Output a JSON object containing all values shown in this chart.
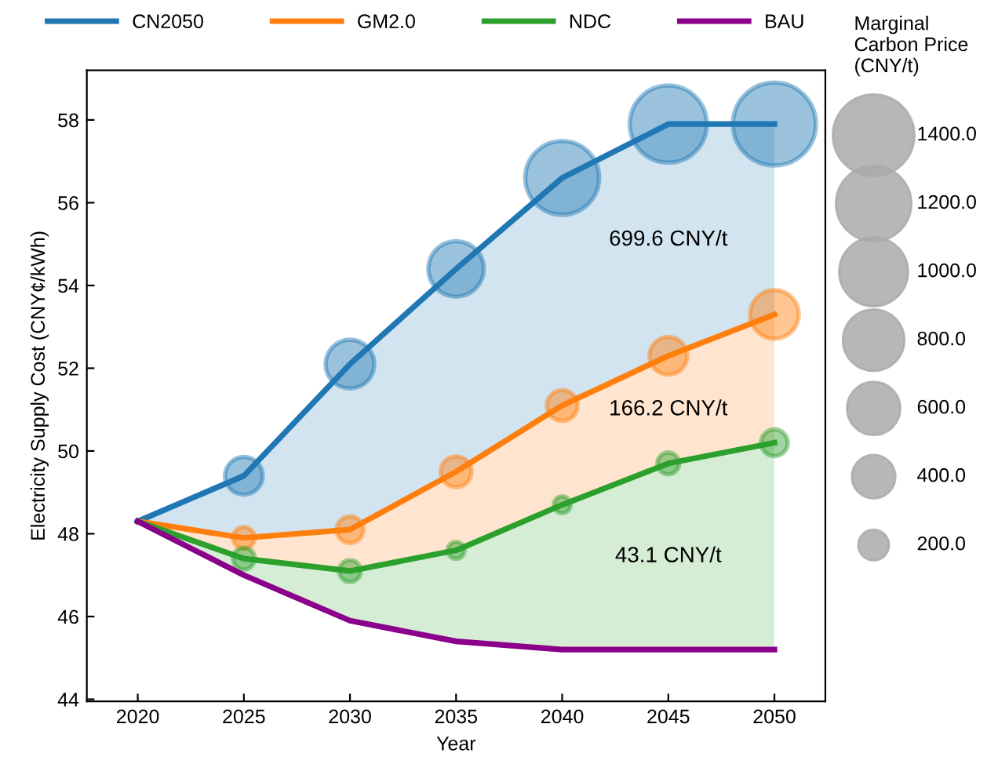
{
  "chart_data": {
    "type": "line",
    "xlabel": "Year",
    "ylabel": "Electricity Supply Cost (CNY¢/kWh)",
    "legend_title": "Marginal\nCarbon Price\n(CNY/t)",
    "x": [
      2020,
      2025,
      2030,
      2035,
      2040,
      2045,
      2050
    ],
    "xlim": [
      2017.6,
      2052.4
    ],
    "xticks": [
      2020,
      2025,
      2030,
      2035,
      2040,
      2045,
      2050
    ],
    "ylim": [
      43.95,
      59.2
    ],
    "yticks": [
      44,
      46,
      48,
      50,
      52,
      54,
      56,
      58
    ],
    "grid": false,
    "legend": "top",
    "size_legend": [
      {
        "value": 1400,
        "label": "1400.0"
      },
      {
        "value": 1200,
        "label": "1200.0"
      },
      {
        "value": 1000,
        "label": "1000.0"
      },
      {
        "value": 800,
        "label": "800.0"
      },
      {
        "value": 600,
        "label": "600.0"
      },
      {
        "value": 400,
        "label": "400.0"
      },
      {
        "value": 200,
        "label": "200.0"
      }
    ],
    "series": [
      {
        "name": "CN2050",
        "type": "area",
        "color": "#1f77b4",
        "values": [
          48.3,
          49.4,
          52.1,
          54.4,
          56.6,
          57.9,
          57.9
        ]
      },
      {
        "name": "GM2.0",
        "type": "area",
        "color": "#ff7f0e",
        "values": [
          48.3,
          47.9,
          48.1,
          49.5,
          51.1,
          52.3,
          53.3
        ]
      },
      {
        "name": "NDC",
        "type": "area",
        "color": "#2ca02c",
        "values": [
          48.3,
          47.4,
          47.1,
          47.6,
          48.7,
          49.7,
          50.2
        ]
      },
      {
        "name": "BAU",
        "color": "#8b008b",
        "values": [
          48.3,
          47.0,
          45.9,
          45.4,
          45.2,
          45.2,
          45.2
        ]
      },
      {
        "type": "bubble",
        "color": "#1f77b4",
        "x": [
          2025,
          2030,
          2035,
          2040,
          2045,
          2050
        ],
        "values": [
          49.4,
          52.1,
          54.4,
          56.6,
          57.9,
          57.9
        ],
        "sizes": [
          300,
          500,
          650,
          1150,
          1250,
          1450
        ]
      },
      {
        "type": "bubble",
        "color": "#ff7f0e",
        "x": [
          2025,
          2030,
          2035,
          2040,
          2045,
          2050
        ],
        "values": [
          47.9,
          48.1,
          49.5,
          51.1,
          52.3,
          53.3
        ],
        "sizes": [
          100,
          150,
          200,
          200,
          300,
          500
        ]
      },
      {
        "type": "bubble",
        "color": "#2ca02c",
        "x": [
          2025,
          2030,
          2035,
          2040,
          2045,
          2050
        ],
        "values": [
          47.4,
          47.1,
          47.6,
          48.7,
          49.7,
          50.2
        ],
        "sizes": [
          100,
          100,
          60,
          60,
          100,
          150
        ]
      }
    ],
    "annotations": [
      "699.6 CNY/t",
      "166.2 CNY/t",
      "43.1 CNY/t"
    ]
  }
}
